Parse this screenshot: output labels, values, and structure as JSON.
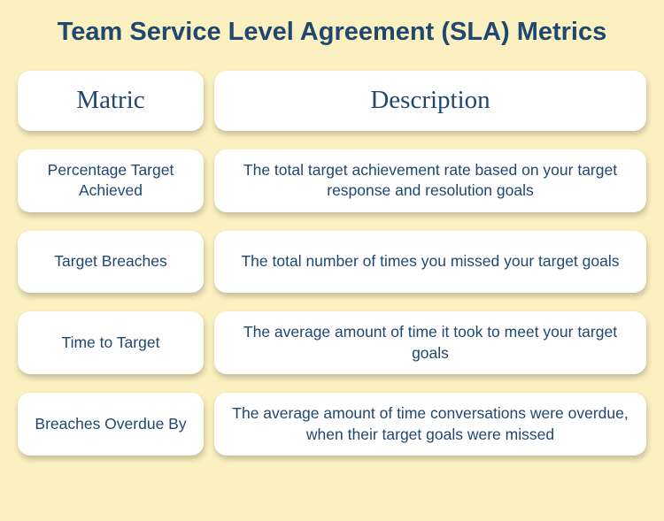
{
  "title": "Team Service Level Agreement (SLA) Metrics",
  "colors": {
    "background": "#faf0c0",
    "card_bg": "#ffffff",
    "text": "#1f4770",
    "shadow": "rgba(0,0,0,0.22)"
  },
  "typography": {
    "title_fontsize": 29,
    "title_weight": 700,
    "header_fontsize": 29,
    "header_weight": 400,
    "body_fontsize": 17.5,
    "body_weight": 400
  },
  "layout": {
    "card_border_radius": 14,
    "row_gap": 21,
    "col_gap": 12,
    "metric_col_width": 210
  },
  "table": {
    "type": "table",
    "columns": [
      "Matric",
      "Description"
    ],
    "rows": [
      {
        "metric": "Percentage Target Achieved",
        "description": "The total target achievement rate based on your target response and resolution goals"
      },
      {
        "metric": "Target Breaches",
        "description": "The total number of times you missed your target goals"
      },
      {
        "metric": "Time to Target",
        "description": "The average amount of time it took to meet your target goals"
      },
      {
        "metric": "Breaches Overdue By",
        "description": "The average amount of time conversations were overdue, when their target goals were missed"
      }
    ]
  }
}
